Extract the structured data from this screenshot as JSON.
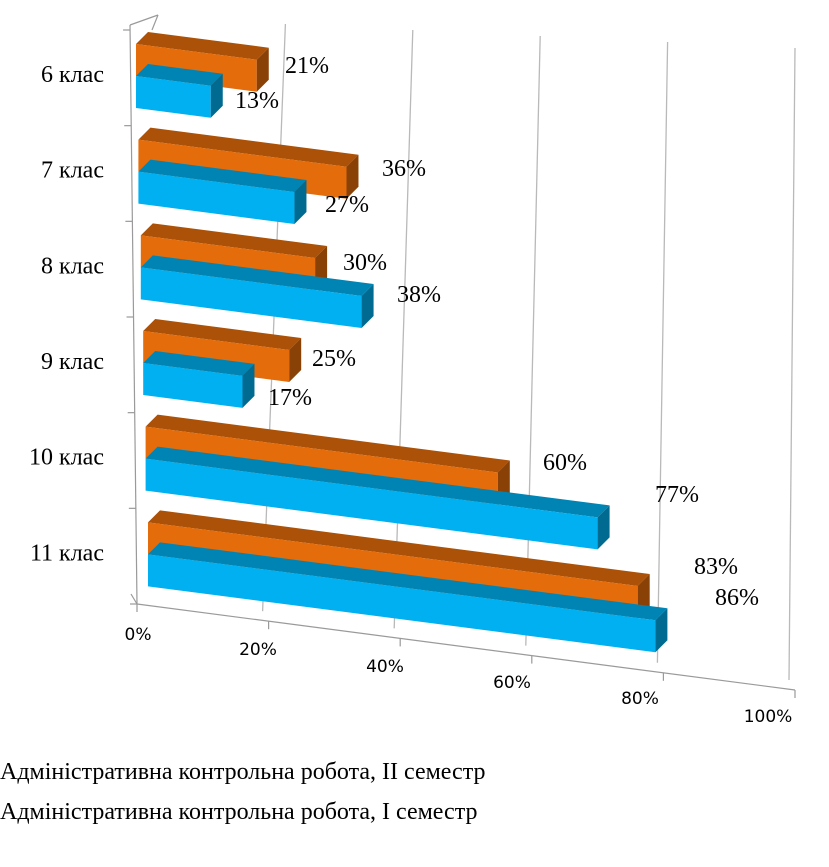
{
  "chart_data": {
    "type": "bar",
    "orientation": "horizontal",
    "categories": [
      "6 клас",
      "7 клас",
      "8 клас",
      "9 клас",
      "10 клас",
      "11 клас"
    ],
    "series": [
      {
        "name": "Адміністративна контрольна робота, II семестр",
        "values": [
          21,
          36,
          30,
          25,
          60,
          83
        ],
        "labels": [
          "21%",
          "36%",
          "30%",
          "25%",
          "60%",
          "83%"
        ],
        "color": "#E46C0A"
      },
      {
        "name": "Адміністративна контрольна робота, І семестр",
        "values": [
          13,
          27,
          38,
          17,
          77,
          86
        ],
        "labels": [
          "13%",
          "27%",
          "38%",
          "17%",
          "77%",
          "86%"
        ],
        "color": "#00B0F0"
      }
    ],
    "x_ticks": [
      "0%",
      "20%",
      "40%",
      "60%",
      "80%",
      "100%"
    ],
    "xlim": [
      0,
      100
    ],
    "grid": true,
    "style": "3d",
    "legend_position": "bottom"
  },
  "legend": {
    "items": [
      "Адміністративна контрольна робота, II семестр",
      "Адміністративна контрольна робота, І семестр"
    ]
  }
}
